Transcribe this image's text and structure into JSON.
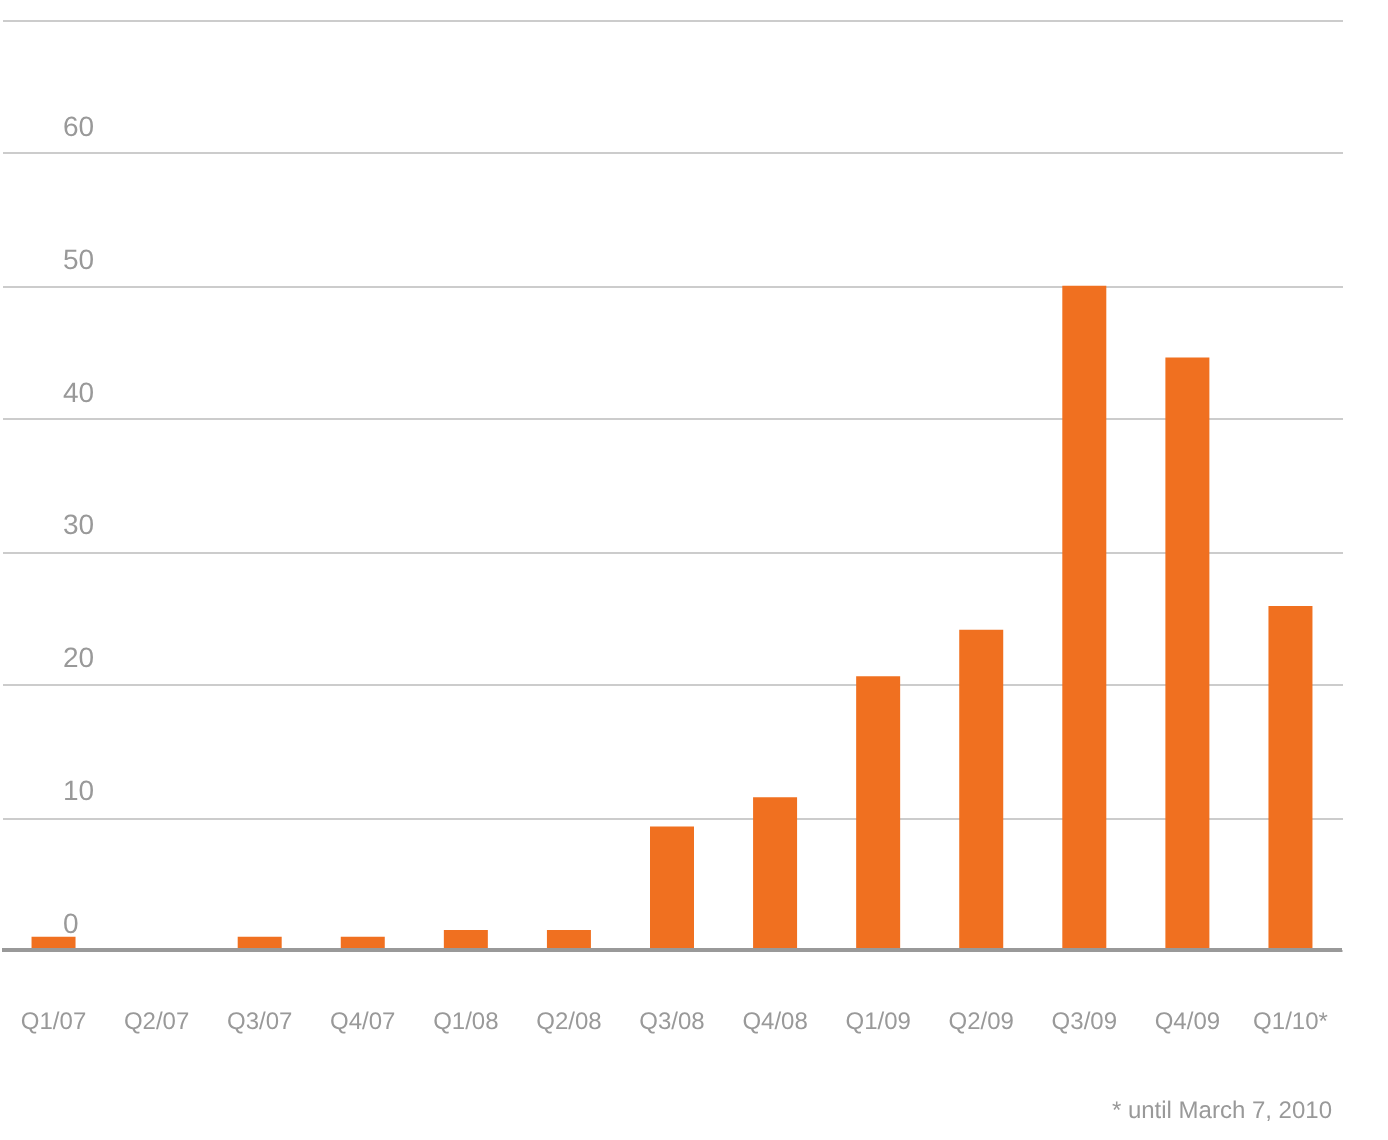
{
  "chart_data": {
    "type": "bar",
    "categories": [
      "Q1/07",
      "Q2/07",
      "Q3/07",
      "Q4/07",
      "Q1/08",
      "Q2/08",
      "Q3/08",
      "Q4/08",
      "Q1/09",
      "Q2/09",
      "Q3/09",
      "Q4/09",
      "Q1/10*"
    ],
    "values": [
      1,
      0,
      1,
      1,
      1.5,
      1.5,
      9.3,
      11.5,
      20.6,
      24.1,
      50,
      44.6,
      25.9
    ],
    "color": "#f07020",
    "ylim": [
      0,
      70
    ],
    "yticks": [
      0,
      10,
      20,
      30,
      40,
      50,
      60,
      {
        "value": 70,
        "label": null
      }
    ],
    "grid": "y",
    "annotations": [
      "* until March 7, 2010"
    ]
  }
}
